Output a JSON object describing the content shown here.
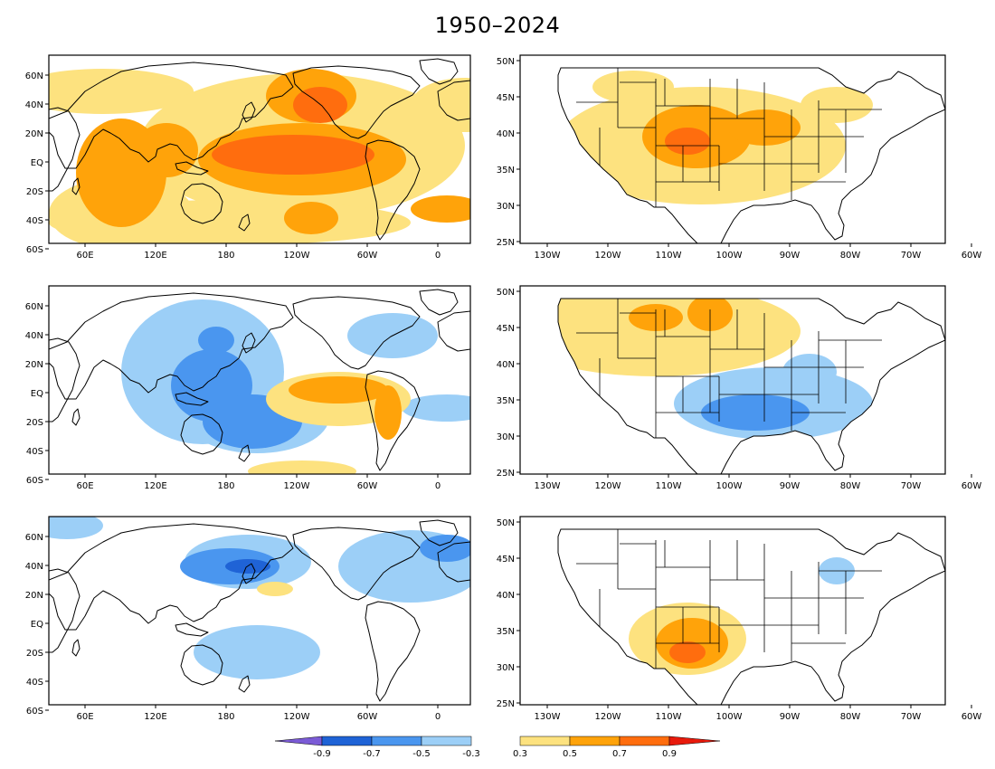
{
  "title": "1950–2024",
  "colors": {
    "n09": "#7b5bd6",
    "n07": "#1f63d6",
    "n05": "#4a96ef",
    "n03": "#9ccff7",
    "p03": "#fde27f",
    "p05": "#ffa30a",
    "p07": "#ff6d0e",
    "p09": "#e81a0c"
  },
  "global_axis": {
    "lat_labels": [
      "60N",
      "40N",
      "20N",
      "EQ",
      "20S",
      "40S",
      "60S"
    ],
    "lon_labels": [
      "60E",
      "120E",
      "180",
      "120W",
      "60W",
      "0"
    ]
  },
  "us_axis": {
    "lat_labels": [
      "50N",
      "45N",
      "40N",
      "35N",
      "30N",
      "25N"
    ],
    "lon_labels": [
      "130W",
      "120W",
      "110W",
      "100W",
      "90W",
      "80W",
      "70W",
      "60W"
    ]
  },
  "colorbar": {
    "neg_labels": [
      "-0.9",
      "-0.7",
      "-0.5",
      "-0.3"
    ],
    "pos_labels": [
      "0.3",
      "0.5",
      "0.7",
      "0.9"
    ]
  },
  "panels": [
    {
      "name": "global-1",
      "blobs": [
        {
          "c": "p03",
          "cx": 60,
          "cy": 40,
          "rx": 100,
          "ry": 25
        },
        {
          "c": "p03",
          "cx": 460,
          "cy": 55,
          "rx": 60,
          "ry": 30
        },
        {
          "c": "p03",
          "cx": 280,
          "cy": 100,
          "rx": 180,
          "ry": 80
        },
        {
          "c": "p03",
          "cx": 200,
          "cy": 185,
          "rx": 200,
          "ry": 25
        },
        {
          "c": "p03",
          "cx": 80,
          "cy": 175,
          "rx": 80,
          "ry": 40
        },
        {
          "c": "p05",
          "cx": 80,
          "cy": 130,
          "rx": 50,
          "ry": 60
        },
        {
          "c": "p05",
          "cx": 130,
          "cy": 105,
          "rx": 35,
          "ry": 30
        },
        {
          "c": "p05",
          "cx": 290,
          "cy": 45,
          "rx": 50,
          "ry": 30
        },
        {
          "c": "p05",
          "cx": 280,
          "cy": 115,
          "rx": 115,
          "ry": 40
        },
        {
          "c": "p05",
          "cx": 290,
          "cy": 180,
          "rx": 30,
          "ry": 18
        },
        {
          "c": "p05",
          "cx": 440,
          "cy": 170,
          "rx": 40,
          "ry": 15
        },
        {
          "c": "p07",
          "cx": 270,
          "cy": 110,
          "rx": 90,
          "ry": 22
        },
        {
          "c": "p07",
          "cx": 300,
          "cy": 55,
          "rx": 30,
          "ry": 20
        }
      ]
    },
    {
      "name": "us-1",
      "blobs": [
        {
          "c": "p03",
          "cx": 200,
          "cy": 100,
          "rx": 160,
          "ry": 65
        },
        {
          "c": "p03",
          "cx": 125,
          "cy": 35,
          "rx": 45,
          "ry": 18
        },
        {
          "c": "p03",
          "cx": 350,
          "cy": 55,
          "rx": 40,
          "ry": 20
        },
        {
          "c": "p05",
          "cx": 195,
          "cy": 90,
          "rx": 60,
          "ry": 35
        },
        {
          "c": "p05",
          "cx": 270,
          "cy": 80,
          "rx": 40,
          "ry": 20
        },
        {
          "c": "p07",
          "cx": 185,
          "cy": 95,
          "rx": 25,
          "ry": 15
        }
      ]
    },
    {
      "name": "global-2",
      "blobs": [
        {
          "c": "n03",
          "cx": 170,
          "cy": 95,
          "rx": 90,
          "ry": 80
        },
        {
          "c": "n03",
          "cx": 230,
          "cy": 145,
          "rx": 80,
          "ry": 40
        },
        {
          "c": "n03",
          "cx": 380,
          "cy": 55,
          "rx": 50,
          "ry": 25
        },
        {
          "c": "n03",
          "cx": 440,
          "cy": 135,
          "rx": 50,
          "ry": 15
        },
        {
          "c": "n05",
          "cx": 180,
          "cy": 110,
          "rx": 45,
          "ry": 40
        },
        {
          "c": "n05",
          "cx": 225,
          "cy": 150,
          "rx": 55,
          "ry": 30
        },
        {
          "c": "n05",
          "cx": 185,
          "cy": 60,
          "rx": 20,
          "ry": 15
        },
        {
          "c": "p03",
          "cx": 320,
          "cy": 125,
          "rx": 80,
          "ry": 30
        },
        {
          "c": "p05",
          "cx": 320,
          "cy": 115,
          "rx": 55,
          "ry": 15
        },
        {
          "c": "p05",
          "cx": 375,
          "cy": 140,
          "rx": 15,
          "ry": 30
        },
        {
          "c": "p03",
          "cx": 280,
          "cy": 205,
          "rx": 60,
          "ry": 12
        }
      ]
    },
    {
      "name": "us-2",
      "blobs": [
        {
          "c": "p03",
          "cx": 150,
          "cy": 50,
          "rx": 160,
          "ry": 50
        },
        {
          "c": "p05",
          "cx": 150,
          "cy": 35,
          "rx": 30,
          "ry": 15
        },
        {
          "c": "p05",
          "cx": 210,
          "cy": 30,
          "rx": 25,
          "ry": 20
        },
        {
          "c": "n03",
          "cx": 280,
          "cy": 130,
          "rx": 110,
          "ry": 40
        },
        {
          "c": "n03",
          "cx": 320,
          "cy": 95,
          "rx": 30,
          "ry": 20
        },
        {
          "c": "n05",
          "cx": 260,
          "cy": 140,
          "rx": 60,
          "ry": 20
        }
      ]
    },
    {
      "name": "global-3",
      "blobs": [
        {
          "c": "n03",
          "cx": 220,
          "cy": 50,
          "rx": 70,
          "ry": 30
        },
        {
          "c": "n03",
          "cx": 400,
          "cy": 55,
          "rx": 80,
          "ry": 40
        },
        {
          "c": "n03",
          "cx": 230,
          "cy": 150,
          "rx": 70,
          "ry": 30
        },
        {
          "c": "n03",
          "cx": 20,
          "cy": 10,
          "rx": 40,
          "ry": 15
        },
        {
          "c": "n05",
          "cx": 200,
          "cy": 55,
          "rx": 55,
          "ry": 20
        },
        {
          "c": "n05",
          "cx": 440,
          "cy": 35,
          "rx": 30,
          "ry": 15
        },
        {
          "c": "n07",
          "cx": 220,
          "cy": 55,
          "rx": 25,
          "ry": 8
        },
        {
          "c": "p03",
          "cx": 250,
          "cy": 80,
          "rx": 20,
          "ry": 8
        }
      ]
    },
    {
      "name": "us-3",
      "blobs": [
        {
          "c": "p03",
          "cx": 185,
          "cy": 135,
          "rx": 65,
          "ry": 40
        },
        {
          "c": "p05",
          "cx": 190,
          "cy": 140,
          "rx": 40,
          "ry": 28
        },
        {
          "c": "p07",
          "cx": 185,
          "cy": 150,
          "rx": 20,
          "ry": 12
        },
        {
          "c": "n03",
          "cx": 350,
          "cy": 60,
          "rx": 20,
          "ry": 15
        }
      ]
    }
  ]
}
